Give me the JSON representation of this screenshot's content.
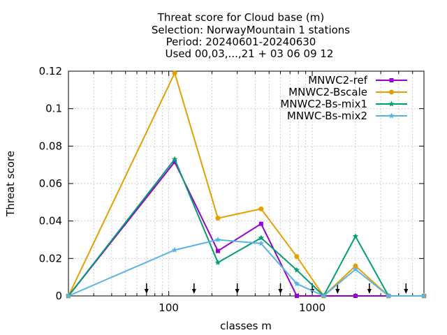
{
  "chart_data": {
    "type": "line",
    "title_lines": [
      "Threat score  for Cloud base (m)",
      "Selection: NorwayMountain      1 stations",
      "Period: 20240601-20240630",
      "Used 00,03,...,21 + 03 06 09 12"
    ],
    "xlabel": "classes m",
    "ylabel": "Threat score",
    "xscale": "log",
    "xlim": [
      20,
      6000
    ],
    "ylim": [
      0,
      0.12
    ],
    "yticks": [
      "0",
      "0.02",
      "0.04",
      "0.06",
      "0.08",
      "0.1",
      "0.12"
    ],
    "yticks_values": [
      0,
      0.02,
      0.04,
      0.06,
      0.08,
      0.1,
      0.12
    ],
    "xticks": [
      "100",
      "1000"
    ],
    "xticks_values": [
      100,
      1000
    ],
    "arrow_markers_x": [
      70,
      150,
      300,
      600,
      1000,
      1500,
      2500,
      4500
    ],
    "x": [
      20,
      110,
      220,
      440,
      780,
      1200,
      2000,
      3400,
      6000
    ],
    "series": [
      {
        "name": "MNWC2-ref",
        "color": "#9400d3",
        "marker": "square",
        "values": [
          0,
          0.0715,
          0.024,
          0.0385,
          0,
          0,
          0,
          0,
          0
        ]
      },
      {
        "name": "MNWC2-Bscale",
        "color": "#e69f00",
        "marker": "circle",
        "values": [
          0,
          0.119,
          0.0415,
          0.0465,
          0.021,
          0,
          0.016,
          0,
          0
        ]
      },
      {
        "name": "MNWC2-Bs-mix1",
        "color": "#009e73",
        "marker": "star",
        "values": [
          0,
          0.073,
          0.0178,
          0.031,
          0.0138,
          0,
          0.0318,
          0,
          0
        ]
      },
      {
        "name": "MNWC-Bs-mix2",
        "color": "#56b4e9",
        "marker": "star",
        "values": [
          0,
          0.0245,
          0.03,
          0.028,
          0.0065,
          0,
          0.0142,
          0,
          0
        ]
      }
    ],
    "legend_position": "top-right",
    "grid": true
  }
}
